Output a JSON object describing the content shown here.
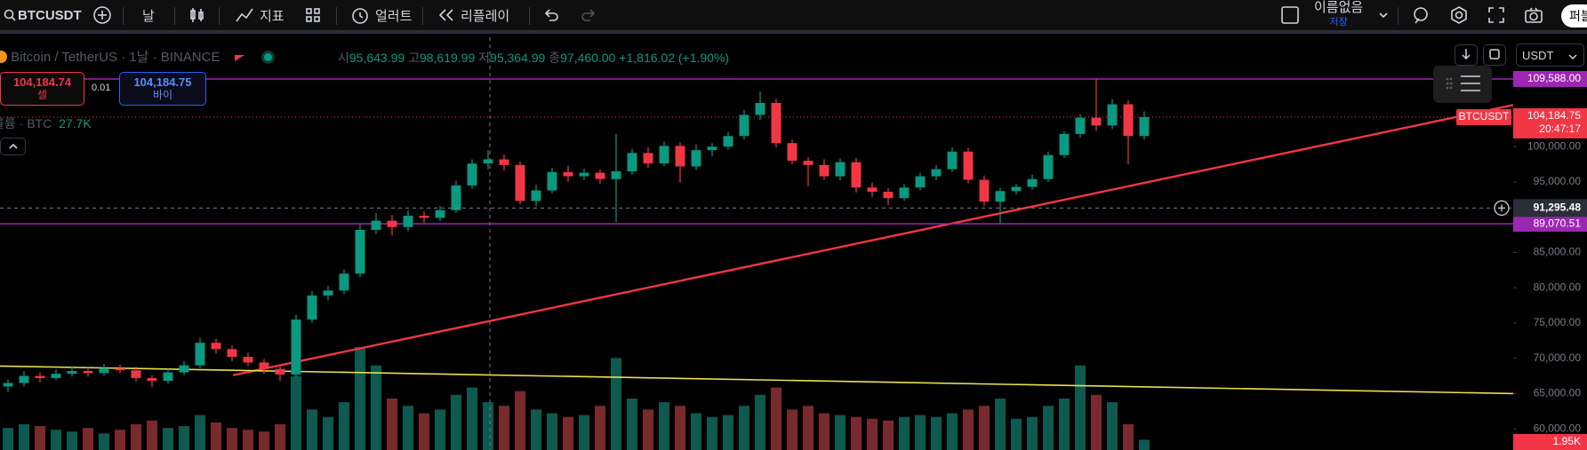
{
  "toolbar": {
    "symbol": "BTCUSDT",
    "interval": "날",
    "indicators": "지표",
    "alerts": "얼러트",
    "replay": "리플레이",
    "layout_name": "이름없음",
    "save": "저장",
    "publish": "퍼블"
  },
  "legend": {
    "name": "Bitcoin / TetherUS",
    "interval": "1날",
    "exchange": "BINANCE",
    "open_label": "시",
    "open": "95,643.99",
    "high_label": "고",
    "high": "98,619.99",
    "low_label": "저",
    "low": "95,364.99",
    "close_label": "종",
    "close": "97,460.00",
    "change": "+1,816.02 (+1.90%)"
  },
  "trade": {
    "sell_price": "104,184.74",
    "sell": "셀",
    "spread": "0.01",
    "buy_price": "104,184.75",
    "buy": "바이"
  },
  "volume_legend": {
    "name": "볼륨 · BTC",
    "value": "27.7K"
  },
  "price_scale": {
    "currency": "USDT",
    "symbol_tag": "BTCUSDT",
    "last_price": "104,184.75",
    "countdown": "20:47:17",
    "crosshair_price": {
      "value": 91295.48,
      "label": "91,295.48"
    },
    "volume_tag": "1.95K"
  },
  "chart_data": {
    "type": "candlestick",
    "candles": [
      [
        66000,
        67000,
        65200,
        66500
      ],
      [
        66500,
        68200,
        66000,
        67500
      ],
      [
        67500,
        68000,
        66600,
        67200
      ],
      [
        67200,
        68400,
        66900,
        67800
      ],
      [
        67800,
        68900,
        67400,
        68200
      ],
      [
        68200,
        68700,
        67400,
        67900
      ],
      [
        67900,
        69200,
        67500,
        68600
      ],
      [
        68600,
        69100,
        67900,
        68300
      ],
      [
        68300,
        68800,
        66700,
        67200
      ],
      [
        67200,
        67600,
        65900,
        66800
      ],
      [
        66800,
        68500,
        66400,
        68000
      ],
      [
        68000,
        69600,
        67600,
        69000
      ],
      [
        69000,
        72900,
        68600,
        72200
      ],
      [
        72200,
        72800,
        70700,
        71300
      ],
      [
        71300,
        71800,
        69600,
        70200
      ],
      [
        70200,
        70800,
        68900,
        69400
      ],
      [
        69400,
        69900,
        67800,
        68500
      ],
      [
        68500,
        69000,
        66800,
        67700
      ],
      [
        67700,
        76200,
        67300,
        75500
      ],
      [
        75500,
        79500,
        75000,
        78900
      ],
      [
        78900,
        80300,
        78200,
        79600
      ],
      [
        79600,
        82600,
        79100,
        82000
      ],
      [
        82000,
        89000,
        81500,
        88200
      ],
      [
        88200,
        90600,
        87600,
        89500
      ],
      [
        89500,
        90300,
        87400,
        88600
      ],
      [
        88600,
        91000,
        88000,
        90200
      ],
      [
        90200,
        90800,
        89200,
        89900
      ],
      [
        89900,
        91600,
        89400,
        91000
      ],
      [
        91000,
        95200,
        90600,
        94500
      ],
      [
        94500,
        98200,
        94000,
        97600
      ],
      [
        97600,
        99500,
        96800,
        98200
      ],
      [
        98200,
        98900,
        96600,
        97400
      ],
      [
        97400,
        97900,
        91800,
        92300
      ],
      [
        92300,
        94600,
        91500,
        93800
      ],
      [
        93800,
        97000,
        93400,
        96400
      ],
      [
        96400,
        97300,
        95000,
        95800
      ],
      [
        95800,
        96900,
        95300,
        96300
      ],
      [
        96300,
        96800,
        94700,
        95400
      ],
      [
        95400,
        101800,
        89300,
        96500
      ],
      [
        96500,
        99700,
        96000,
        99100
      ],
      [
        99100,
        99900,
        97000,
        97600
      ],
      [
        97600,
        100700,
        97200,
        100100
      ],
      [
        100100,
        100600,
        94900,
        97200
      ],
      [
        97200,
        100300,
        96700,
        99500
      ],
      [
        99500,
        100500,
        98600,
        100000
      ],
      [
        100000,
        102100,
        99600,
        101500
      ],
      [
        101500,
        105200,
        101000,
        104500
      ],
      [
        104500,
        107800,
        103800,
        106200
      ],
      [
        106200,
        106800,
        99900,
        100500
      ],
      [
        100500,
        101000,
        97500,
        98000
      ],
      [
        98000,
        98500,
        94400,
        97400
      ],
      [
        97400,
        98200,
        95300,
        95800
      ],
      [
        95800,
        98300,
        95200,
        97800
      ],
      [
        97800,
        98400,
        93500,
        94200
      ],
      [
        94200,
        94900,
        92900,
        93600
      ],
      [
        93600,
        94100,
        91700,
        92700
      ],
      [
        92700,
        94700,
        92300,
        94200
      ],
      [
        94200,
        96300,
        93800,
        95800
      ],
      [
        95800,
        97400,
        95300,
        96800
      ],
      [
        96800,
        99900,
        96400,
        99300
      ],
      [
        99300,
        99800,
        94800,
        95300
      ],
      [
        95300,
        95900,
        91600,
        92200
      ],
      [
        92200,
        94200,
        89100,
        93700
      ],
      [
        93700,
        94700,
        93200,
        94300
      ],
      [
        94300,
        96000,
        93900,
        95400
      ],
      [
        95400,
        99300,
        95000,
        98800
      ],
      [
        98800,
        102200,
        98400,
        101800
      ],
      [
        101800,
        104600,
        101300,
        104100
      ],
      [
        104100,
        109588,
        102200,
        103000
      ],
      [
        103000,
        106700,
        102500,
        106000
      ],
      [
        106000,
        106600,
        97500,
        101500
      ],
      [
        101500,
        105000,
        101000,
        104184.75
      ]
    ],
    "volumes": [
      60,
      70,
      65,
      55,
      50,
      60,
      45,
      55,
      70,
      80,
      60,
      65,
      95,
      75,
      60,
      55,
      50,
      70,
      200,
      110,
      90,
      130,
      280,
      230,
      140,
      120,
      100,
      110,
      150,
      170,
      130,
      120,
      160,
      110,
      100,
      90,
      95,
      120,
      250,
      140,
      110,
      130,
      120,
      100,
      90,
      95,
      120,
      150,
      170,
      110,
      120,
      100,
      95,
      90,
      85,
      80,
      90,
      95,
      90,
      100,
      110,
      120,
      140,
      85,
      90,
      120,
      140,
      230,
      150,
      130,
      70,
      27.7
    ],
    "up_color": "#089981",
    "down_color": "#f23645",
    "ylim": [
      57000,
      115500
    ],
    "yticks": [
      {
        "value": 60000,
        "label": "60,000.00"
      },
      {
        "value": 65000,
        "label": "65,000.00"
      },
      {
        "value": 70000,
        "label": "70,000.00"
      },
      {
        "value": 75000,
        "label": "75,000.00"
      },
      {
        "value": 80000,
        "label": "80,000.00"
      },
      {
        "value": 85000,
        "label": "85,000.00"
      },
      {
        "value": 95000,
        "label": "95,000.00"
      },
      {
        "value": 100000,
        "label": "100,000.00"
      }
    ],
    "hlines": [
      {
        "value": 109588,
        "label": "109,588.00",
        "color": "#9c27b0"
      },
      {
        "value": 89070.51,
        "label": "89,070.51",
        "color": "#9c27b0"
      }
    ],
    "trendlines": [
      {
        "start": 67600,
        "end": 105900,
        "color": "#f23645"
      },
      {
        "start": 68900,
        "end": 65000,
        "color": "#e8e050"
      }
    ]
  }
}
